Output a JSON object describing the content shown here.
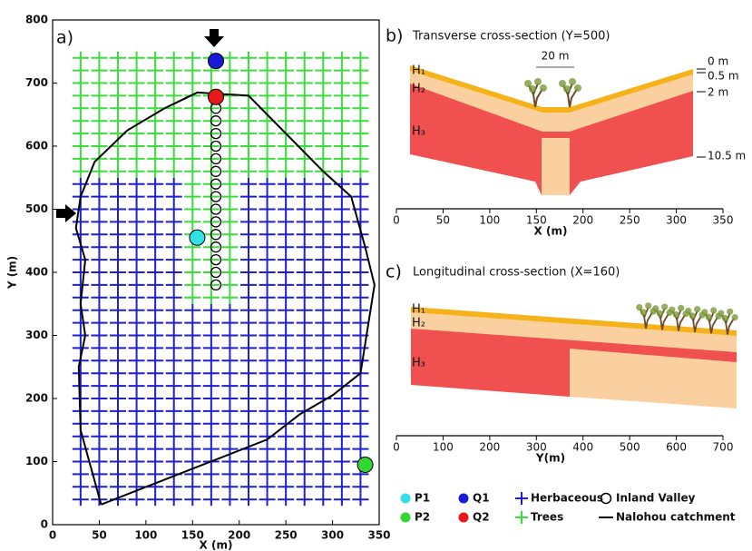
{
  "chart_data": [
    {
      "type": "map",
      "panel_label": "a)",
      "xlabel": "X (m)",
      "ylabel": "Y (m)",
      "xlim": [
        0,
        350
      ],
      "ylim": [
        0,
        800
      ],
      "xticks": [
        0,
        50,
        100,
        150,
        200,
        250,
        300,
        350
      ],
      "yticks": [
        0,
        100,
        200,
        300,
        400,
        500,
        600,
        700,
        800
      ],
      "cover_series": [
        {
          "name": "Herbaceous",
          "color": "#1f1fd0"
        },
        {
          "name": "Trees",
          "color": "#3cdc3c"
        }
      ],
      "cover_x": [
        30,
        50,
        70,
        90,
        110,
        130,
        150,
        170,
        190,
        210,
        230,
        250,
        270,
        290,
        310,
        330
      ],
      "cover_y": [
        40,
        60,
        80,
        100,
        120,
        140,
        160,
        180,
        200,
        220,
        240,
        260,
        280,
        300,
        320,
        340,
        360,
        380,
        400,
        420,
        440,
        460,
        480,
        500,
        520,
        540,
        560,
        580,
        600,
        620,
        640,
        660,
        680,
        700,
        720,
        740
      ],
      "cover": [
        [
          0,
          0,
          0,
          0,
          0,
          0,
          0,
          0,
          0,
          0,
          0,
          0,
          0,
          0,
          0,
          0
        ],
        [
          0,
          0,
          0,
          0,
          0,
          0,
          0,
          0,
          0,
          0,
          0,
          0,
          0,
          0,
          0,
          0
        ],
        [
          0,
          0,
          0,
          0,
          0,
          0,
          0,
          0,
          0,
          0,
          0,
          0,
          0,
          0,
          0,
          0
        ],
        [
          0,
          0,
          0,
          0,
          0,
          0,
          0,
          0,
          0,
          0,
          0,
          0,
          0,
          0,
          0,
          0
        ],
        [
          0,
          0,
          0,
          0,
          0,
          0,
          0,
          0,
          0,
          0,
          0,
          0,
          0,
          0,
          0,
          0
        ],
        [
          0,
          0,
          0,
          0,
          0,
          0,
          0,
          0,
          0,
          0,
          0,
          0,
          0,
          0,
          0,
          0
        ],
        [
          0,
          0,
          0,
          0,
          0,
          0,
          0,
          0,
          0,
          0,
          0,
          0,
          0,
          0,
          0,
          0
        ],
        [
          0,
          0,
          0,
          0,
          0,
          0,
          0,
          0,
          0,
          0,
          0,
          0,
          0,
          0,
          0,
          0
        ],
        [
          0,
          0,
          0,
          0,
          0,
          0,
          0,
          0,
          0,
          0,
          0,
          0,
          0,
          0,
          0,
          0
        ],
        [
          0,
          0,
          0,
          0,
          0,
          0,
          0,
          0,
          0,
          0,
          0,
          0,
          0,
          0,
          0,
          0
        ],
        [
          0,
          0,
          0,
          0,
          0,
          0,
          0,
          0,
          0,
          0,
          0,
          0,
          0,
          0,
          0,
          0
        ],
        [
          0,
          0,
          0,
          0,
          0,
          0,
          0,
          0,
          0,
          0,
          0,
          0,
          0,
          0,
          0,
          0
        ],
        [
          0,
          0,
          0,
          0,
          0,
          0,
          0,
          0,
          0,
          0,
          0,
          0,
          0,
          0,
          0,
          0
        ],
        [
          0,
          0,
          0,
          0,
          0,
          0,
          0,
          0,
          0,
          0,
          0,
          0,
          0,
          0,
          0,
          0
        ],
        [
          0,
          0,
          0,
          0,
          0,
          0,
          0,
          0,
          0,
          0,
          0,
          0,
          0,
          0,
          0,
          0
        ],
        [
          0,
          0,
          0,
          0,
          0,
          0,
          0,
          0,
          0,
          0,
          0,
          0,
          0,
          0,
          0,
          0
        ],
        [
          0,
          0,
          0,
          0,
          0,
          0,
          1,
          1,
          1,
          0,
          0,
          0,
          0,
          0,
          0,
          0
        ],
        [
          0,
          0,
          0,
          0,
          0,
          0,
          1,
          1,
          1,
          0,
          0,
          0,
          0,
          0,
          0,
          0
        ],
        [
          0,
          0,
          0,
          0,
          0,
          0,
          1,
          1,
          1,
          0,
          0,
          0,
          0,
          0,
          0,
          0
        ],
        [
          0,
          0,
          0,
          0,
          0,
          0,
          1,
          1,
          1,
          0,
          0,
          0,
          0,
          0,
          0,
          0
        ],
        [
          0,
          0,
          0,
          0,
          0,
          0,
          1,
          1,
          1,
          0,
          0,
          0,
          0,
          0,
          0,
          0
        ],
        [
          0,
          0,
          0,
          0,
          0,
          0,
          1,
          1,
          1,
          0,
          0,
          0,
          0,
          0,
          0,
          0
        ],
        [
          0,
          0,
          0,
          0,
          0,
          0,
          1,
          1,
          1,
          0,
          0,
          0,
          0,
          0,
          0,
          0
        ],
        [
          0,
          0,
          0,
          0,
          0,
          0,
          1,
          1,
          1,
          0,
          0,
          0,
          0,
          0,
          0,
          0
        ],
        [
          0,
          0,
          0,
          0,
          0,
          0,
          1,
          1,
          1,
          0,
          0,
          0,
          0,
          0,
          0,
          0
        ],
        [
          0,
          0,
          0,
          0,
          0,
          0,
          1,
          1,
          1,
          0,
          0,
          0,
          0,
          0,
          0,
          0
        ],
        [
          1,
          1,
          1,
          1,
          1,
          1,
          1,
          1,
          1,
          1,
          1,
          1,
          1,
          1,
          1,
          1
        ],
        [
          1,
          1,
          1,
          1,
          1,
          1,
          1,
          1,
          1,
          1,
          1,
          1,
          1,
          1,
          1,
          1
        ],
        [
          1,
          1,
          1,
          1,
          1,
          1,
          1,
          1,
          1,
          1,
          1,
          1,
          1,
          1,
          1,
          1
        ],
        [
          1,
          1,
          1,
          1,
          1,
          1,
          1,
          1,
          1,
          1,
          1,
          1,
          1,
          1,
          1,
          1
        ],
        [
          1,
          1,
          1,
          1,
          1,
          1,
          1,
          1,
          1,
          1,
          1,
          1,
          1,
          1,
          1,
          1
        ],
        [
          1,
          1,
          1,
          1,
          1,
          1,
          1,
          1,
          1,
          1,
          1,
          1,
          1,
          1,
          1,
          1
        ],
        [
          1,
          1,
          1,
          1,
          1,
          1,
          1,
          1,
          1,
          1,
          1,
          1,
          1,
          1,
          1,
          1
        ],
        [
          1,
          1,
          1,
          1,
          1,
          1,
          1,
          1,
          1,
          1,
          1,
          1,
          1,
          1,
          1,
          1
        ],
        [
          1,
          1,
          1,
          1,
          1,
          1,
          1,
          1,
          1,
          1,
          1,
          1,
          1,
          1,
          1,
          1
        ],
        [
          1,
          1,
          1,
          1,
          1,
          1,
          1,
          1,
          1,
          1,
          1,
          1,
          1,
          1,
          1,
          1
        ]
      ],
      "valley": {
        "name": "Inland Valley",
        "x": [
          175,
          175,
          175,
          175,
          175,
          175,
          175,
          175,
          175,
          175,
          175,
          175,
          175,
          175,
          175
        ],
        "y": [
          380,
          400,
          420,
          440,
          460,
          480,
          500,
          520,
          540,
          560,
          580,
          600,
          620,
          640,
          660
        ]
      },
      "boundary": {
        "name": "Nalohou catchment",
        "color": "#000000",
        "x": [
          52,
          230,
          265,
          300,
          330,
          345,
          335,
          320,
          290,
          210,
          155,
          120,
          80,
          45,
          30,
          25,
          35,
          30,
          35,
          28,
          30,
          52
        ],
        "y": [
          32,
          135,
          175,
          205,
          240,
          380,
          440,
          520,
          560,
          680,
          685,
          660,
          625,
          575,
          520,
          470,
          420,
          350,
          300,
          250,
          150,
          32
        ]
      },
      "points": [
        {
          "name": "P1",
          "color": "#33e0e6",
          "x": 155,
          "y": 455
        },
        {
          "name": "P2",
          "color": "#33d633",
          "x": 335,
          "y": 95
        },
        {
          "name": "Q1",
          "color": "#1a1ad6",
          "x": 175,
          "y": 735
        },
        {
          "name": "Q2",
          "color": "#e61a1a",
          "x": 175,
          "y": 678
        }
      ]
    },
    {
      "type": "cross-section",
      "panel_label": "b)",
      "title": "Transverse cross-section (Y=500)",
      "xlabel": "X (m)",
      "xlim": [
        0,
        350
      ],
      "xticks": [
        0,
        50,
        100,
        150,
        200,
        250,
        300,
        350
      ],
      "layers": [
        "H₁",
        "H₂",
        "H₃"
      ],
      "depths": [
        "0 m",
        "0.5 m",
        "2 m",
        "10.5 m"
      ],
      "width_label": "20 m"
    },
    {
      "type": "cross-section",
      "panel_label": "c)",
      "title": "Longitudinal cross-section (X=160)",
      "xlabel": "Y(m)",
      "xlim": [
        0,
        700
      ],
      "xticks": [
        0,
        100,
        200,
        300,
        400,
        500,
        600,
        700
      ],
      "layers": [
        "H₁",
        "H₂",
        "H₃"
      ]
    }
  ]
}
